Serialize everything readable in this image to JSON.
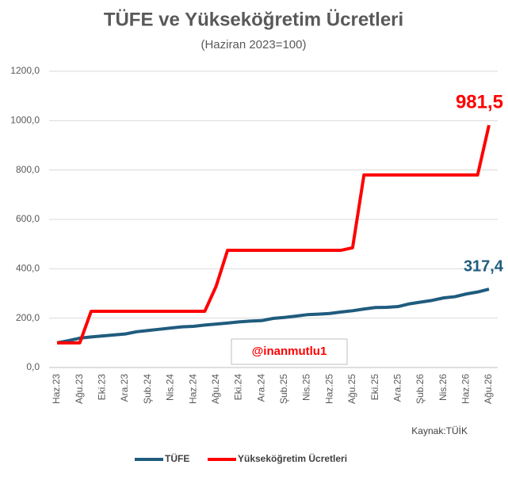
{
  "chart_data": {
    "type": "line",
    "title": "TÜFE ve Yükseköğretim Ücretleri",
    "subtitle": "(Haziran 2023=100)",
    "watermark": "@inanmutlu1",
    "source": "Kaynak:TÜİK",
    "categories": [
      "Haz.23",
      null,
      "Ağu.23",
      null,
      "Eki.23",
      null,
      "Ara.23",
      null,
      "Şub.24",
      null,
      "Nis.24",
      null,
      "Haz.24",
      null,
      "Ağu.24",
      null,
      "Eki.24",
      null,
      "Ara.24",
      null,
      "Şub.25",
      null,
      "Nis.25",
      null,
      "Haz.25",
      null,
      "Ağu.25",
      null,
      "Eki.25",
      null,
      "Ara.25",
      null,
      "Şub.26",
      null,
      "Nis.26",
      null,
      "Haz.26",
      null,
      "Ağu.26"
    ],
    "series": [
      {
        "name": "TÜFE",
        "color": "#1f5c7e",
        "values": [
          100,
          109,
          119,
          124,
          128,
          132,
          136,
          145,
          150,
          155,
          160,
          165,
          167,
          172,
          176,
          180,
          185,
          188,
          190,
          199,
          203,
          208,
          214,
          216,
          219,
          225,
          230,
          237,
          243,
          244,
          247,
          258,
          265,
          272,
          282,
          287,
          298,
          306,
          317.4
        ],
        "value_labels": [
          null,
          null,
          null,
          null,
          null,
          null,
          null,
          null,
          null,
          null,
          null,
          null,
          null,
          null,
          null,
          null,
          null,
          null,
          null,
          null,
          null,
          null,
          null,
          null,
          null,
          null,
          null,
          null,
          null,
          null,
          null,
          null,
          null,
          null,
          null,
          null,
          null,
          null,
          "317,4"
        ]
      },
      {
        "name": "Yükseköğretim Ücretleri",
        "color": "#ff0000",
        "values": [
          100,
          100,
          100,
          228,
          228,
          228,
          228,
          228,
          228,
          228,
          228,
          228,
          228,
          228,
          330,
          475,
          475,
          475,
          475,
          475,
          475,
          475,
          475,
          475,
          475,
          475,
          485,
          780,
          780,
          780,
          780,
          780,
          780,
          780,
          780,
          780,
          780,
          780,
          981.5
        ],
        "value_labels": [
          null,
          null,
          null,
          null,
          null,
          null,
          null,
          null,
          null,
          null,
          null,
          null,
          null,
          null,
          null,
          null,
          null,
          null,
          null,
          null,
          null,
          null,
          null,
          null,
          null,
          null,
          null,
          null,
          null,
          null,
          null,
          null,
          null,
          null,
          null,
          null,
          null,
          null,
          "981,5"
        ]
      }
    ],
    "ylim": [
      0,
      1200
    ],
    "yticks": [
      {
        "value": 0,
        "label": "0,0"
      },
      {
        "value": 200,
        "label": "200,0"
      },
      {
        "value": 400,
        "label": "400,0"
      },
      {
        "value": 600,
        "label": "600,0"
      },
      {
        "value": 800,
        "label": "800,0"
      },
      {
        "value": 1000,
        "label": "1000,0"
      },
      {
        "value": 1200,
        "label": "1200,0"
      }
    ],
    "grid": true
  }
}
